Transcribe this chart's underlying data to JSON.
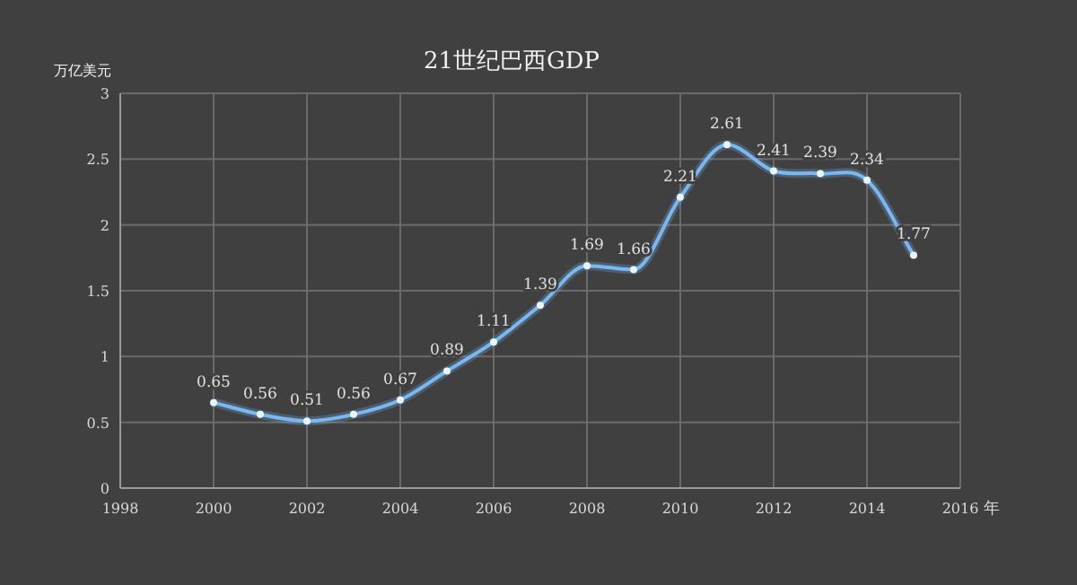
{
  "chart_data": {
    "type": "line",
    "title": "21世纪巴西GDP",
    "ylabel": "万亿美元",
    "xlabel": "年",
    "x": [
      2000,
      2001,
      2002,
      2003,
      2004,
      2005,
      2006,
      2007,
      2008,
      2009,
      2010,
      2011,
      2012,
      2013,
      2014,
      2015
    ],
    "series": [
      {
        "color": "#79b8f2",
        "values": [
          0.65,
          0.56,
          0.51,
          0.56,
          0.67,
          0.89,
          1.11,
          1.39,
          1.69,
          1.66,
          2.21,
          2.61,
          2.41,
          2.39,
          2.34,
          1.77
        ]
      }
    ],
    "xlim": [
      1998,
      2016
    ],
    "xticks": [
      1998,
      2000,
      2002,
      2004,
      2006,
      2008,
      2010,
      2012,
      2014,
      2016
    ],
    "ylim": [
      0,
      3
    ],
    "yticks": [
      0,
      0.5,
      1,
      1.5,
      2,
      2.5,
      3
    ],
    "grid": true,
    "marker": "circle",
    "line_style": "solid",
    "data_labels": true
  }
}
